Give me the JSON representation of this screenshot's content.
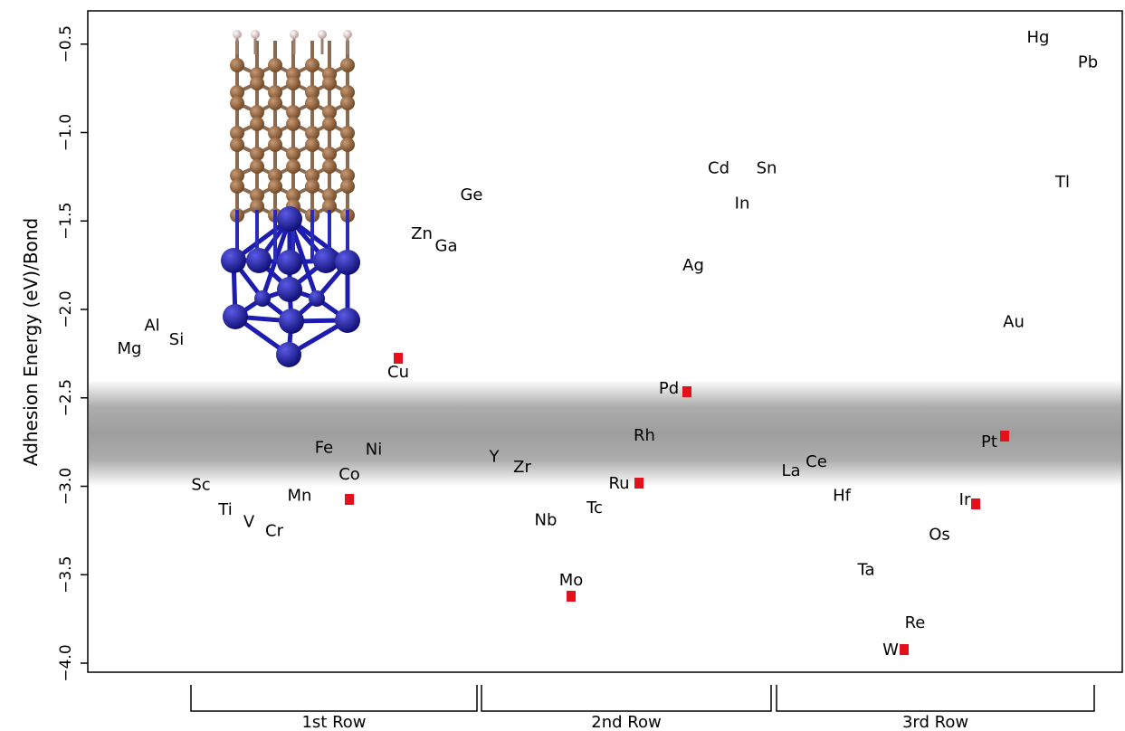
{
  "chart_data": {
    "type": "scatter",
    "title": "",
    "xlabel": "",
    "ylabel": "Adhesion Energy (eV)/Bond",
    "ylim": [
      -4.05,
      -0.35
    ],
    "yticks": [
      -4.0,
      -3.5,
      -3.0,
      -2.5,
      -2.0,
      -1.5,
      -1.0,
      -0.5
    ],
    "ytick_labels": [
      "-4.0",
      "-3.5",
      "-3.0",
      "-2.5",
      "-2.0",
      "-1.5",
      "-1.0",
      "-0.5"
    ],
    "grid": false,
    "highlight_band": {
      "y_from": -2.95,
      "y_to": -2.45,
      "color": "#9e9e9e"
    },
    "marker_color": "#e4111c",
    "groups": [
      {
        "label": "1st Row"
      },
      {
        "label": "2nd Row"
      },
      {
        "label": "3rd Row"
      }
    ],
    "points": [
      {
        "label": "Mg",
        "group": 0,
        "y": -2.22,
        "marked": false
      },
      {
        "label": "Al",
        "group": 0,
        "y": -2.09,
        "marked": false
      },
      {
        "label": "Si",
        "group": 0,
        "y": -2.17,
        "marked": false
      },
      {
        "label": "Sc",
        "group": 0,
        "y": -2.99,
        "marked": false
      },
      {
        "label": "Ti",
        "group": 0,
        "y": -3.13,
        "marked": false
      },
      {
        "label": "V",
        "group": 0,
        "y": -3.2,
        "marked": false
      },
      {
        "label": "Cr",
        "group": 0,
        "y": -3.25,
        "marked": false
      },
      {
        "label": "Mn",
        "group": 0,
        "y": -3.05,
        "marked": false
      },
      {
        "label": "Fe",
        "group": 0,
        "y": -2.78,
        "marked": false
      },
      {
        "label": "Co",
        "group": 0,
        "y": -3.08,
        "marked": true
      },
      {
        "label": "Ni",
        "group": 0,
        "y": -2.79,
        "marked": false
      },
      {
        "label": "Cu",
        "group": 0,
        "y": -2.28,
        "marked": true
      },
      {
        "label": "Zn",
        "group": 0,
        "y": -1.57,
        "marked": false
      },
      {
        "label": "Ga",
        "group": 0,
        "y": -1.64,
        "marked": false
      },
      {
        "label": "Ge",
        "group": 0,
        "y": -1.35,
        "marked": false
      },
      {
        "label": "Y",
        "group": 1,
        "y": -2.83,
        "marked": false
      },
      {
        "label": "Zr",
        "group": 1,
        "y": -2.89,
        "marked": false
      },
      {
        "label": "Nb",
        "group": 1,
        "y": -3.19,
        "marked": false
      },
      {
        "label": "Mo",
        "group": 1,
        "y": -3.62,
        "marked": true
      },
      {
        "label": "Tc",
        "group": 1,
        "y": -3.12,
        "marked": false
      },
      {
        "label": "Ru",
        "group": 1,
        "y": -2.98,
        "marked": true
      },
      {
        "label": "Rh",
        "group": 1,
        "y": -2.71,
        "marked": false
      },
      {
        "label": "Pd",
        "group": 1,
        "y": -2.47,
        "marked": true
      },
      {
        "label": "Ag",
        "group": 1,
        "y": -1.75,
        "marked": false
      },
      {
        "label": "Cd",
        "group": 1,
        "y": -1.2,
        "marked": false
      },
      {
        "label": "In",
        "group": 1,
        "y": -1.4,
        "marked": false
      },
      {
        "label": "Sn",
        "group": 1,
        "y": -1.2,
        "marked": false
      },
      {
        "label": "La",
        "group": 2,
        "y": -2.91,
        "marked": false
      },
      {
        "label": "Ce",
        "group": 2,
        "y": -2.86,
        "marked": false
      },
      {
        "label": "Hf",
        "group": 2,
        "y": -3.05,
        "marked": false
      },
      {
        "label": "Ta",
        "group": 2,
        "y": -3.47,
        "marked": false
      },
      {
        "label": "W",
        "group": 2,
        "y": -3.91,
        "marked": true
      },
      {
        "label": "Re",
        "group": 2,
        "y": -3.77,
        "marked": false
      },
      {
        "label": "Os",
        "group": 2,
        "y": -3.27,
        "marked": false
      },
      {
        "label": "Ir",
        "group": 2,
        "y": -3.1,
        "marked": true
      },
      {
        "label": "Pt",
        "group": 2,
        "y": -2.72,
        "marked": true
      },
      {
        "label": "Au",
        "group": 2,
        "y": -2.07,
        "marked": false
      },
      {
        "label": "Hg",
        "group": 2,
        "y": -0.46,
        "marked": false
      },
      {
        "label": "Tl",
        "group": 2,
        "y": -1.28,
        "marked": false
      },
      {
        "label": "Pb",
        "group": 2,
        "y": -0.6,
        "marked": false
      }
    ]
  }
}
